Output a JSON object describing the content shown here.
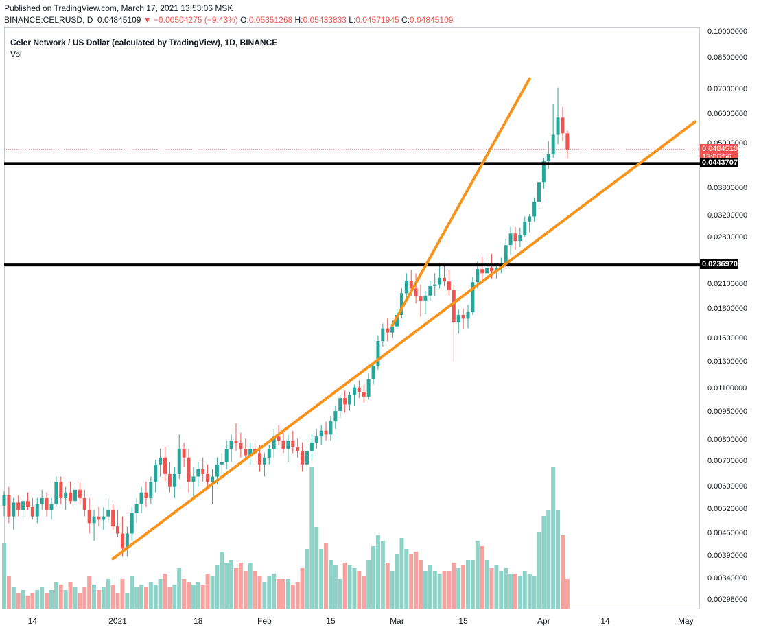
{
  "header": {
    "line1": "Published on TradingView.com, March 17, 2021 13:53:06 MSK",
    "symbol": "BINANCE:CELRUSD, D",
    "last": "0.04845109",
    "change": "▼ −0.00504275 (−9.43%)",
    "o_label": "O:",
    "o": "0.05351268",
    "h_label": "H:",
    "h": "0.05433833",
    "l_label": "L:",
    "l": "0.04571945",
    "c_label": "C:",
    "c": "0.04845109"
  },
  "legend": {
    "title": "Celer Network / US Dollar (calculated by TradingView), 1D, BINANCE",
    "vol": "Vol"
  },
  "colors": {
    "up": "#26a69a",
    "down": "#ef5350",
    "vol_up": "#8fd2c8",
    "vol_down": "#f4a3a1",
    "trend": "#f7931a",
    "level": "#000000"
  },
  "chart_data": {
    "type": "candlestick",
    "scale": "log",
    "ylim": [
      0.0029,
      0.1
    ],
    "y_ticks": [
      "0.10000000",
      "0.08500000",
      "0.07000000",
      "0.06000000",
      "0.05000000",
      "0.03800000",
      "0.03200000",
      "0.02800000",
      "0.02100000",
      "0.01800000",
      "0.01500000",
      "0.01300000",
      "0.01100000",
      "0.00950000",
      "0.00800000",
      "0.00700000",
      "0.00600000",
      "0.00520000",
      "0.00450000",
      "0.00390000",
      "0.00340000",
      "0.00298000"
    ],
    "x_ticks": [
      "14",
      "2021",
      "18",
      "Feb",
      "15",
      "Mar",
      "15",
      "Apr",
      "14",
      "May"
    ],
    "x_range": [
      "2020-12-08",
      "2021-05-04"
    ],
    "x_tick_dates": [
      "2020-12-14",
      "2021-01-01",
      "2021-01-18",
      "2021-02-01",
      "2021-02-15",
      "2021-03-01",
      "2021-03-15",
      "2021-04-01",
      "2021-04-14",
      "2021-05-01"
    ],
    "first_candle_date": "2020-12-08",
    "candles": [
      [
        0.00535,
        0.00585,
        0.005,
        0.0057,
        120
      ],
      [
        0.0057,
        0.006,
        0.0048,
        0.005,
        60
      ],
      [
        0.005,
        0.0056,
        0.0046,
        0.00545,
        40
      ],
      [
        0.00545,
        0.0057,
        0.005,
        0.0052,
        30
      ],
      [
        0.0052,
        0.0056,
        0.0049,
        0.0055,
        35
      ],
      [
        0.0055,
        0.0058,
        0.0052,
        0.0053,
        25
      ],
      [
        0.0053,
        0.0056,
        0.0049,
        0.005,
        30
      ],
      [
        0.005,
        0.0056,
        0.0048,
        0.0054,
        35
      ],
      [
        0.0054,
        0.0059,
        0.0052,
        0.0056,
        40
      ],
      [
        0.0056,
        0.0058,
        0.005,
        0.0052,
        30
      ],
      [
        0.0052,
        0.0056,
        0.0049,
        0.0054,
        35
      ],
      [
        0.0054,
        0.0064,
        0.0053,
        0.0062,
        50
      ],
      [
        0.0062,
        0.0064,
        0.0054,
        0.0056,
        45
      ],
      [
        0.0056,
        0.006,
        0.0052,
        0.0058,
        35
      ],
      [
        0.0058,
        0.0062,
        0.0054,
        0.0055,
        50
      ],
      [
        0.0055,
        0.0061,
        0.0052,
        0.0059,
        40
      ],
      [
        0.0059,
        0.0062,
        0.0054,
        0.0056,
        30
      ],
      [
        0.0056,
        0.0059,
        0.005,
        0.0052,
        40
      ],
      [
        0.0052,
        0.0056,
        0.0045,
        0.0048,
        60
      ],
      [
        0.0048,
        0.0052,
        0.0043,
        0.005,
        45
      ],
      [
        0.005,
        0.0053,
        0.0047,
        0.0049,
        35
      ],
      [
        0.0049,
        0.0053,
        0.0046,
        0.005,
        40
      ],
      [
        0.005,
        0.0056,
        0.0048,
        0.0052,
        55
      ],
      [
        0.0052,
        0.0054,
        0.0046,
        0.0047,
        45
      ],
      [
        0.0047,
        0.0052,
        0.0044,
        0.0045,
        30
      ],
      [
        0.0045,
        0.005,
        0.0039,
        0.0041,
        55
      ],
      [
        0.0041,
        0.0047,
        0.0039,
        0.0045,
        30
      ],
      [
        0.0045,
        0.0053,
        0.0043,
        0.0051,
        60
      ],
      [
        0.0051,
        0.0056,
        0.0048,
        0.0054,
        40
      ],
      [
        0.0054,
        0.006,
        0.0051,
        0.0058,
        45
      ],
      [
        0.0058,
        0.0062,
        0.0053,
        0.0056,
        40
      ],
      [
        0.0056,
        0.0064,
        0.0054,
        0.0062,
        50
      ],
      [
        0.0062,
        0.0071,
        0.0058,
        0.0069,
        45
      ],
      [
        0.0069,
        0.0076,
        0.0064,
        0.0072,
        55
      ],
      [
        0.0072,
        0.0077,
        0.0062,
        0.0065,
        65
      ],
      [
        0.0065,
        0.007,
        0.0058,
        0.006,
        40
      ],
      [
        0.006,
        0.0068,
        0.0056,
        0.0065,
        45
      ],
      [
        0.0065,
        0.0083,
        0.0063,
        0.0076,
        75
      ],
      [
        0.0076,
        0.0079,
        0.0068,
        0.0072,
        55
      ],
      [
        0.0072,
        0.0076,
        0.0058,
        0.0062,
        50
      ],
      [
        0.0062,
        0.0068,
        0.0056,
        0.0064,
        45
      ],
      [
        0.0064,
        0.007,
        0.006,
        0.0067,
        50
      ],
      [
        0.0067,
        0.0072,
        0.0062,
        0.0065,
        45
      ],
      [
        0.0065,
        0.0069,
        0.0059,
        0.0062,
        65
      ],
      [
        0.0062,
        0.0067,
        0.0054,
        0.0064,
        60
      ],
      [
        0.0064,
        0.0072,
        0.0061,
        0.0069,
        80
      ],
      [
        0.0069,
        0.0074,
        0.0065,
        0.007,
        105
      ],
      [
        0.007,
        0.008,
        0.0067,
        0.0076,
        85
      ],
      [
        0.0076,
        0.0083,
        0.007,
        0.008,
        90
      ],
      [
        0.008,
        0.0089,
        0.0075,
        0.0079,
        75
      ],
      [
        0.0079,
        0.0084,
        0.0072,
        0.0076,
        85
      ],
      [
        0.0076,
        0.0081,
        0.0071,
        0.0073,
        70
      ],
      [
        0.0073,
        0.0079,
        0.0069,
        0.0076,
        85
      ],
      [
        0.0076,
        0.008,
        0.007,
        0.0074,
        70
      ],
      [
        0.0074,
        0.0078,
        0.0066,
        0.0069,
        60
      ],
      [
        0.0069,
        0.0074,
        0.0064,
        0.0072,
        50
      ],
      [
        0.0072,
        0.0078,
        0.0069,
        0.0076,
        60
      ],
      [
        0.0076,
        0.0086,
        0.0072,
        0.0082,
        65
      ],
      [
        0.0082,
        0.0088,
        0.0078,
        0.008,
        55
      ],
      [
        0.008,
        0.0086,
        0.0074,
        0.0076,
        55
      ],
      [
        0.0076,
        0.0083,
        0.007,
        0.008,
        55
      ],
      [
        0.008,
        0.0085,
        0.0074,
        0.0077,
        45
      ],
      [
        0.0077,
        0.0081,
        0.0072,
        0.0075,
        50
      ],
      [
        0.0075,
        0.0079,
        0.0066,
        0.0069,
        75
      ],
      [
        0.0069,
        0.0077,
        0.0066,
        0.0075,
        110
      ],
      [
        0.0075,
        0.0083,
        0.0071,
        0.0079,
        260
      ],
      [
        0.0079,
        0.0086,
        0.0076,
        0.0082,
        150
      ],
      [
        0.0082,
        0.0088,
        0.0078,
        0.0085,
        110
      ],
      [
        0.0085,
        0.009,
        0.008,
        0.0083,
        120
      ],
      [
        0.0083,
        0.0093,
        0.008,
        0.009,
        90
      ],
      [
        0.009,
        0.0099,
        0.0086,
        0.0096,
        80
      ],
      [
        0.0096,
        0.0106,
        0.0092,
        0.0104,
        55
      ],
      [
        0.0104,
        0.0109,
        0.0095,
        0.01,
        85
      ],
      [
        0.01,
        0.0108,
        0.0096,
        0.0106,
        80
      ],
      [
        0.0106,
        0.0113,
        0.0099,
        0.0111,
        75
      ],
      [
        0.0111,
        0.0116,
        0.0104,
        0.0108,
        70
      ],
      [
        0.0108,
        0.0113,
        0.0101,
        0.0105,
        60
      ],
      [
        0.0105,
        0.0121,
        0.0103,
        0.0117,
        90
      ],
      [
        0.0117,
        0.013,
        0.0113,
        0.0127,
        115
      ],
      [
        0.0127,
        0.0153,
        0.0124,
        0.0148,
        135
      ],
      [
        0.0148,
        0.0165,
        0.0143,
        0.016,
        125
      ],
      [
        0.016,
        0.017,
        0.0148,
        0.0156,
        85
      ],
      [
        0.0156,
        0.0168,
        0.0151,
        0.0162,
        70
      ],
      [
        0.0162,
        0.018,
        0.0159,
        0.0174,
        100
      ],
      [
        0.0174,
        0.0205,
        0.017,
        0.0199,
        130
      ],
      [
        0.0199,
        0.0225,
        0.0191,
        0.0215,
        110
      ],
      [
        0.0215,
        0.023,
        0.0196,
        0.0205,
        100
      ],
      [
        0.0205,
        0.0225,
        0.0187,
        0.0195,
        105
      ],
      [
        0.0195,
        0.021,
        0.0172,
        0.019,
        90
      ],
      [
        0.019,
        0.0202,
        0.0175,
        0.0196,
        70
      ],
      [
        0.0196,
        0.0215,
        0.019,
        0.0208,
        80
      ],
      [
        0.0208,
        0.0225,
        0.0195,
        0.021,
        70
      ],
      [
        0.021,
        0.024,
        0.0205,
        0.0219,
        65
      ],
      [
        0.0219,
        0.0238,
        0.0208,
        0.0214,
        70
      ],
      [
        0.0214,
        0.023,
        0.0196,
        0.0203,
        70
      ],
      [
        0.0203,
        0.021,
        0.013,
        0.0166,
        85
      ],
      [
        0.0166,
        0.018,
        0.0155,
        0.0174,
        75
      ],
      [
        0.0174,
        0.0181,
        0.0159,
        0.017,
        80
      ],
      [
        0.017,
        0.0185,
        0.016,
        0.0177,
        90
      ],
      [
        0.0177,
        0.022,
        0.0174,
        0.0213,
        90
      ],
      [
        0.0213,
        0.0242,
        0.0205,
        0.0231,
        125
      ],
      [
        0.0231,
        0.025,
        0.0215,
        0.0225,
        115
      ],
      [
        0.0225,
        0.024,
        0.0214,
        0.0233,
        90
      ],
      [
        0.0233,
        0.0254,
        0.0218,
        0.0228,
        75
      ],
      [
        0.0228,
        0.0239,
        0.0218,
        0.0233,
        80
      ],
      [
        0.0233,
        0.0248,
        0.0225,
        0.0238,
        70
      ],
      [
        0.0238,
        0.0279,
        0.0233,
        0.0268,
        75
      ],
      [
        0.0268,
        0.03,
        0.0253,
        0.0288,
        65
      ],
      [
        0.0288,
        0.03,
        0.026,
        0.0275,
        65
      ],
      [
        0.0275,
        0.0298,
        0.0265,
        0.0285,
        60
      ],
      [
        0.0285,
        0.032,
        0.0282,
        0.031,
        70
      ],
      [
        0.031,
        0.0325,
        0.029,
        0.032,
        65
      ],
      [
        0.032,
        0.036,
        0.031,
        0.035,
        60
      ],
      [
        0.035,
        0.0405,
        0.034,
        0.0396,
        140
      ],
      [
        0.0396,
        0.046,
        0.038,
        0.045,
        170
      ],
      [
        0.045,
        0.051,
        0.043,
        0.047,
        180
      ],
      [
        0.047,
        0.064,
        0.046,
        0.053,
        260
      ],
      [
        0.053,
        0.071,
        0.05,
        0.059,
        180
      ],
      [
        0.059,
        0.063,
        0.051,
        0.05351,
        135
      ],
      [
        0.05351,
        0.05434,
        0.04572,
        0.04845,
        55
      ]
    ],
    "levels": [
      0.04437073,
      0.02369707
    ],
    "last_price": 0.04845109,
    "countdown": "13:06:56",
    "trendlines": [
      {
        "from": [
          "2020-12-31",
          0.00385
        ],
        "to": [
          "2021-05-03",
          0.0575
        ]
      },
      {
        "from": [
          "2021-02-28",
          0.0163
        ],
        "to": [
          "2021-03-29",
          0.075
        ]
      }
    ]
  }
}
